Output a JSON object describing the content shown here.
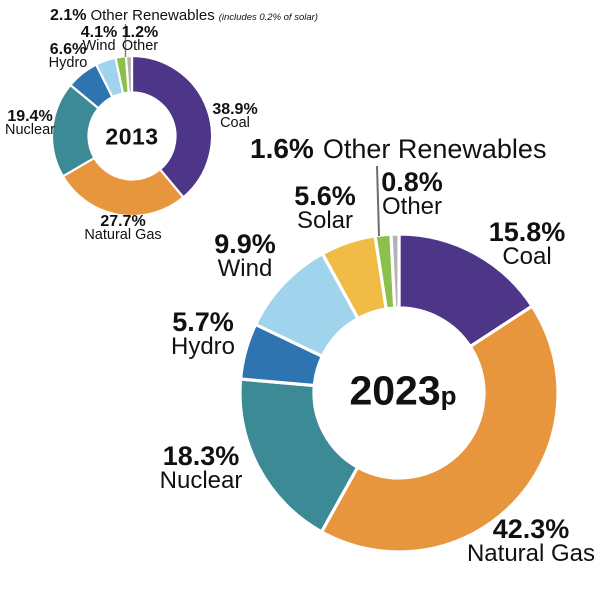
{
  "charts": {
    "c2013": {
      "center_label": "2013",
      "labels": {
        "other_renewables": {
          "pct": "2.1%",
          "name": "Other Renewables",
          "note": "(includes 0.2% of solar)"
        },
        "wind": {
          "pct": "4.1%",
          "name": "Wind"
        },
        "other": {
          "pct": "1.2%",
          "name": "Other"
        },
        "hydro": {
          "pct": "6.6%",
          "name": "Hydro"
        },
        "nuclear": {
          "pct": "19.4%",
          "name": "Nuclear"
        },
        "coal": {
          "pct": "38.9%",
          "name": "Coal"
        },
        "natural_gas": {
          "pct": "27.7%",
          "name": "Natural Gas"
        }
      }
    },
    "c2023": {
      "center_year": "2023",
      "center_suffix": "p",
      "labels": {
        "other_renewables": {
          "pct": "1.6%",
          "name": "Other Renewables"
        },
        "other": {
          "pct": "0.8%",
          "name": "Other"
        },
        "solar": {
          "pct": "5.6%",
          "name": "Solar"
        },
        "wind": {
          "pct": "9.9%",
          "name": "Wind"
        },
        "hydro": {
          "pct": "5.7%",
          "name": "Hydro"
        },
        "nuclear": {
          "pct": "18.3%",
          "name": "Nuclear"
        },
        "natural_gas": {
          "pct": "42.3%",
          "name": "Natural Gas"
        },
        "coal": {
          "pct": "15.8%",
          "name": "Coal"
        }
      }
    }
  },
  "chart_data": [
    {
      "type": "pie",
      "style": "donut",
      "title": "2013",
      "categories": [
        "Coal",
        "Natural Gas",
        "Nuclear",
        "Hydro",
        "Wind",
        "Other Renewables",
        "Other"
      ],
      "values": [
        38.9,
        27.7,
        19.4,
        6.6,
        4.1,
        2.1,
        1.2
      ],
      "colors": [
        "#4d3588",
        "#e8963d",
        "#3d8a97",
        "#2e74b0",
        "#9fd4ec",
        "#8cc04c",
        "#b3b3b3"
      ],
      "units": "%",
      "note": "Other Renewables includes 0.2% of solar",
      "start_angle_deg": 0,
      "direction": "clockwise",
      "legend": "none",
      "labels_position": "outside"
    },
    {
      "type": "pie",
      "style": "donut",
      "title": "2023p",
      "categories": [
        "Coal",
        "Natural Gas",
        "Nuclear",
        "Hydro",
        "Wind",
        "Solar",
        "Other Renewables",
        "Other"
      ],
      "values": [
        15.8,
        42.3,
        18.3,
        5.7,
        9.9,
        5.6,
        1.6,
        0.8
      ],
      "colors": [
        "#4d3588",
        "#e8963d",
        "#3d8a97",
        "#2e74b0",
        "#9fd4ec",
        "#f0bc45",
        "#8cc04c",
        "#b3b3b3"
      ],
      "units": "%",
      "start_angle_deg": 0,
      "direction": "clockwise",
      "legend": "none",
      "labels_position": "outside"
    }
  ]
}
